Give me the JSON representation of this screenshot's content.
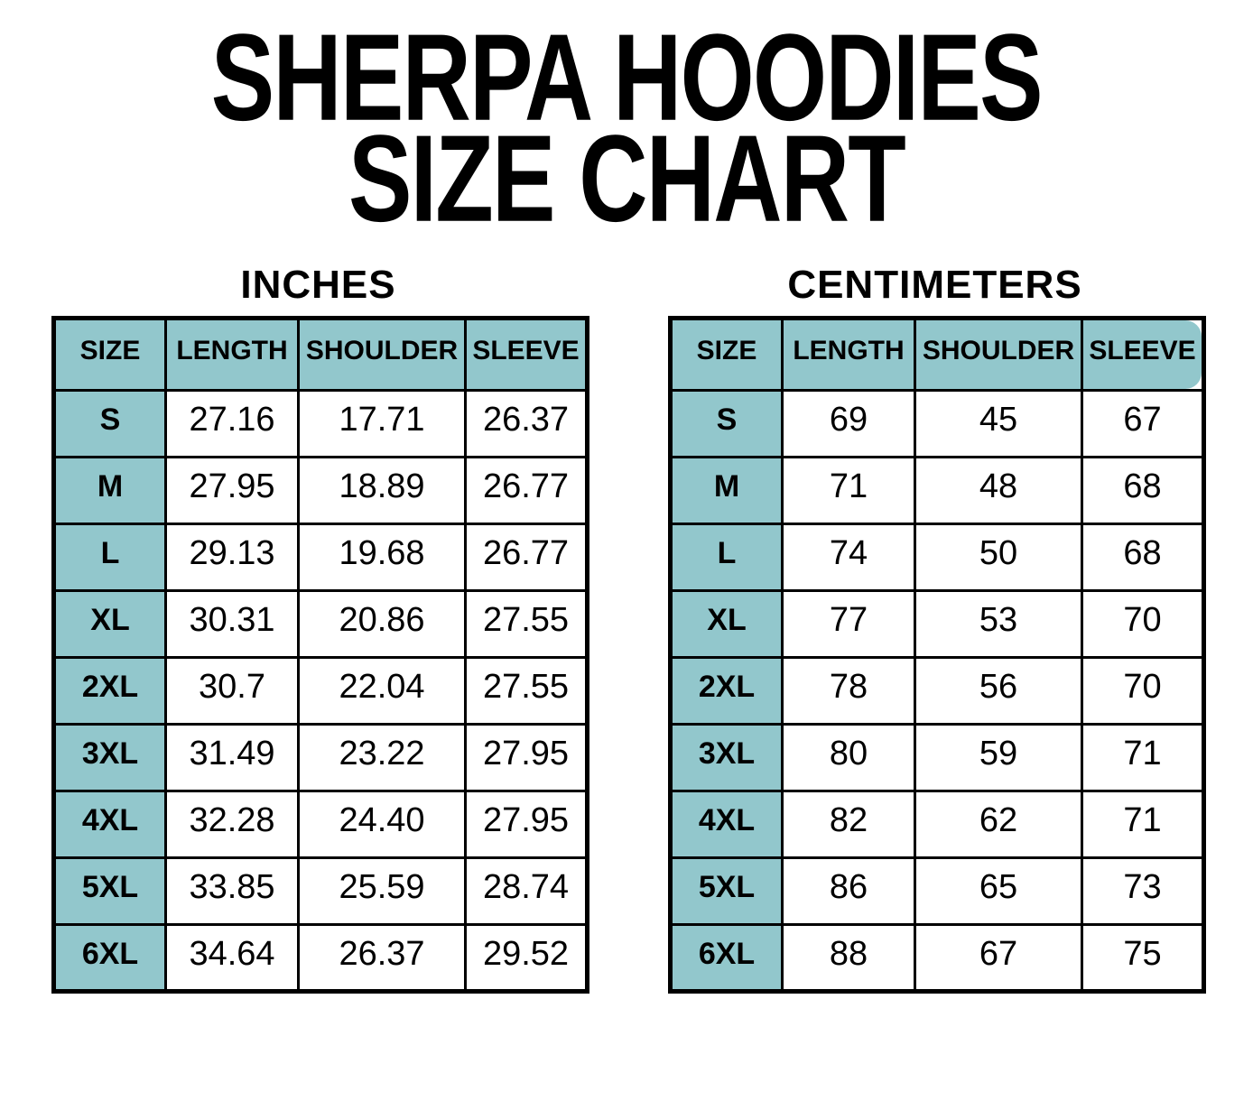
{
  "page_title": {
    "line1": "SHERPA HOODIES",
    "line2": "SIZE CHART"
  },
  "colors": {
    "header_bg": "#92C7CC",
    "table_border": "#000000",
    "page_bg": "#FFFFFF",
    "text": "#000000"
  },
  "chart_data": [
    {
      "type": "table",
      "title": "INCHES",
      "columns": [
        "SIZE",
        "LENGTH",
        "SHOULDER",
        "SLEEVE"
      ],
      "rows": [
        [
          "S",
          "27.16",
          "17.71",
          "26.37"
        ],
        [
          "M",
          "27.95",
          "18.89",
          "26.77"
        ],
        [
          "L",
          "29.13",
          "19.68",
          "26.77"
        ],
        [
          "XL",
          "30.31",
          "20.86",
          "27.55"
        ],
        [
          "2XL",
          "30.7",
          "22.04",
          "27.55"
        ],
        [
          "3XL",
          "31.49",
          "23.22",
          "27.95"
        ],
        [
          "4XL",
          "32.28",
          "24.40",
          "27.95"
        ],
        [
          "5XL",
          "33.85",
          "25.59",
          "28.74"
        ],
        [
          "6XL",
          "34.64",
          "26.37",
          "29.52"
        ]
      ]
    },
    {
      "type": "table",
      "title": "CENTIMETERS",
      "columns": [
        "SIZE",
        "LENGTH",
        "SHOULDER",
        "SLEEVE"
      ],
      "rows": [
        [
          "S",
          "69",
          "45",
          "67"
        ],
        [
          "M",
          "71",
          "48",
          "68"
        ],
        [
          "L",
          "74",
          "50",
          "68"
        ],
        [
          "XL",
          "77",
          "53",
          "70"
        ],
        [
          "2XL",
          "78",
          "56",
          "70"
        ],
        [
          "3XL",
          "80",
          "59",
          "71"
        ],
        [
          "4XL",
          "82",
          "62",
          "71"
        ],
        [
          "5XL",
          "86",
          "65",
          "73"
        ],
        [
          "6XL",
          "88",
          "67",
          "75"
        ]
      ]
    }
  ]
}
